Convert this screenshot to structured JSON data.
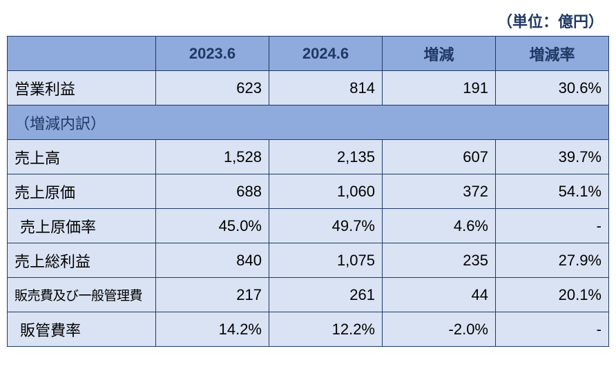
{
  "unit_label": "（単位：億円）",
  "columns": {
    "c0": "",
    "c1": "2023.6",
    "c2": "2024.6",
    "c3": "増減",
    "c4": "増減率"
  },
  "rows": {
    "r0": {
      "label": "営業利益",
      "v1": "623",
      "v2": "814",
      "v3": "191",
      "v4": "30.6%"
    },
    "breakdown_header": "（増減内訳）",
    "r1": {
      "label": "売上高",
      "v1": "1,528",
      "v2": "2,135",
      "v3": "607",
      "v4": "39.7%"
    },
    "r2": {
      "label": "売上原価",
      "v1": "688",
      "v2": "1,060",
      "v3": "372",
      "v4": "54.1%"
    },
    "r3": {
      "label": "売上原価率",
      "v1": "45.0%",
      "v2": "49.7%",
      "v3": "4.6%",
      "v4": "-"
    },
    "r4": {
      "label": "売上総利益",
      "v1": "840",
      "v2": "1,075",
      "v3": "235",
      "v4": "27.9%"
    },
    "r5": {
      "label": "販売費及び一般管理費",
      "v1": "217",
      "v2": "261",
      "v3": "44",
      "v4": "20.1%"
    },
    "r6": {
      "label": "販管費率",
      "v1": "14.2%",
      "v2": "12.2%",
      "v3": "-2.0%",
      "v4": "-"
    }
  },
  "style": {
    "header_bg": "#8faadc",
    "cell_bg": "#dae3f3",
    "border_color": "#1f3864",
    "text_color": "#000000",
    "header_text_color": "#1f3864"
  }
}
